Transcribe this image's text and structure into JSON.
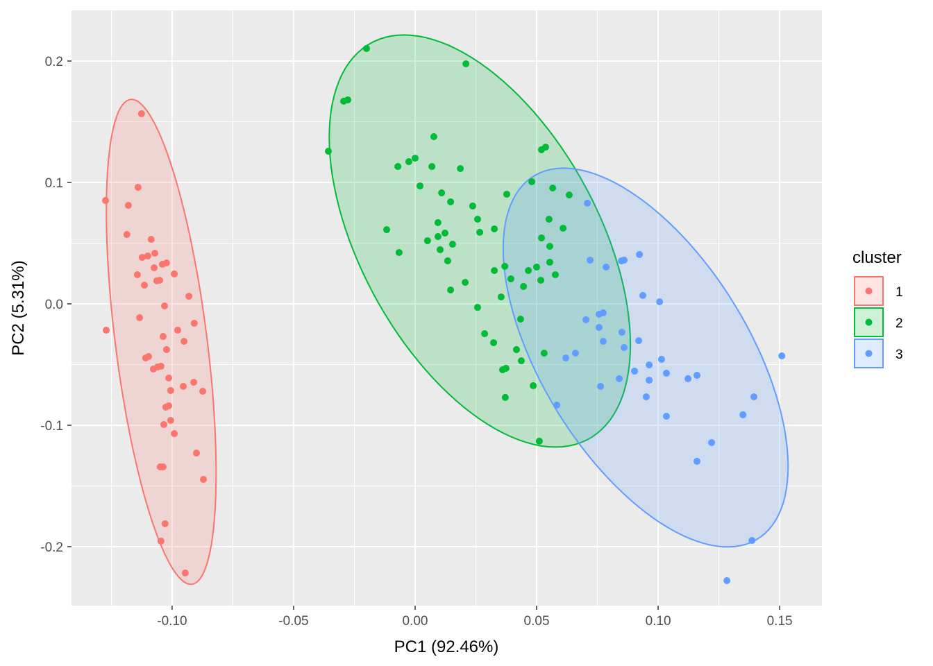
{
  "chart_data": {
    "type": "scatter",
    "xlabel": "PC1 (92.46%)",
    "ylabel": "PC2 (5.31%)",
    "xlim": [
      -0.1414,
      0.1674
    ],
    "ylim": [
      -0.2486,
      0.2417
    ],
    "xticks": [
      -0.1,
      -0.05,
      0.0,
      0.05,
      0.1,
      0.15
    ],
    "xtick_labels": [
      "-0.10",
      "-0.05",
      "0.00",
      "0.05",
      "0.10",
      "0.15"
    ],
    "yticks": [
      -0.2,
      -0.1,
      0.0,
      0.1,
      0.2
    ],
    "ytick_labels": [
      "-0.2",
      "-0.1",
      "0.0",
      "0.1",
      "0.2"
    ],
    "grid": true,
    "ellipses": "95% per cluster, filled",
    "legend": {
      "title": "cluster",
      "placement": "right"
    },
    "series": [
      {
        "name": "1",
        "color": "#F8766D",
        "points": [
          [
            -0.1126,
            0.1566
          ],
          [
            -0.1274,
            0.0851
          ],
          [
            -0.114,
            0.096
          ],
          [
            -0.118,
            0.0811
          ],
          [
            -0.1186,
            0.0571
          ],
          [
            -0.1086,
            0.0531
          ],
          [
            -0.1123,
            0.0383
          ],
          [
            -0.11,
            0.0394
          ],
          [
            -0.1071,
            0.0417
          ],
          [
            -0.1023,
            0.0337
          ],
          [
            -0.104,
            0.0326
          ],
          [
            -0.1074,
            0.0297
          ],
          [
            -0.1143,
            0.024
          ],
          [
            -0.0991,
            0.0246
          ],
          [
            -0.1051,
            0.0194
          ],
          [
            -0.1063,
            0.019
          ],
          [
            -0.1114,
            0.0154
          ],
          [
            -0.0931,
            0.0063
          ],
          [
            -0.1031,
            -0.0017
          ],
          [
            -0.1134,
            -0.0114
          ],
          [
            -0.1037,
            -0.0269
          ],
          [
            -0.0977,
            -0.0217
          ],
          [
            -0.0909,
            -0.016
          ],
          [
            -0.0951,
            -0.0309
          ],
          [
            -0.1271,
            -0.0217
          ],
          [
            -0.1023,
            -0.0377
          ],
          [
            -0.1097,
            -0.0434
          ],
          [
            -0.1109,
            -0.0446
          ],
          [
            -0.1046,
            -0.0514
          ],
          [
            -0.106,
            -0.052
          ],
          [
            -0.1077,
            -0.0537
          ],
          [
            -0.1014,
            -0.0611
          ],
          [
            -0.0954,
            -0.068
          ],
          [
            -0.0911,
            -0.0646
          ],
          [
            -0.0874,
            -0.072
          ],
          [
            -0.1006,
            -0.0714
          ],
          [
            -0.1014,
            -0.084
          ],
          [
            -0.1026,
            -0.0851
          ],
          [
            -0.1006,
            -0.096
          ],
          [
            -0.1034,
            -0.0994
          ],
          [
            -0.0991,
            -0.1069
          ],
          [
            -0.09,
            -0.1229
          ],
          [
            -0.0871,
            -0.1446
          ],
          [
            -0.1037,
            -0.1343
          ],
          [
            -0.1049,
            -0.1343
          ],
          [
            -0.1029,
            -0.1811
          ],
          [
            -0.1046,
            -0.1954
          ],
          [
            -0.0946,
            -0.2217
          ]
        ]
      },
      {
        "name": "2",
        "color": "#00BA38",
        "points": [
          [
            -0.02,
            0.2103
          ],
          [
            0.0209,
            0.1977
          ],
          [
            -0.0294,
            0.1669
          ],
          [
            -0.0277,
            0.168
          ],
          [
            -0.0357,
            0.1257
          ],
          [
            0.0077,
            0.1377
          ],
          [
            0.0,
            0.12
          ],
          [
            -0.0026,
            0.1171
          ],
          [
            -0.0071,
            0.1131
          ],
          [
            0.0069,
            0.1131
          ],
          [
            0.0186,
            0.1114
          ],
          [
            0.0537,
            0.1291
          ],
          [
            0.052,
            0.1269
          ],
          [
            0.048,
            0.1006
          ],
          [
            0.002,
            0.0971
          ],
          [
            0.0109,
            0.0914
          ],
          [
            0.0377,
            0.0903
          ],
          [
            0.0566,
            0.0954
          ],
          [
            0.0634,
            0.0897
          ],
          [
            0.0146,
            0.084
          ],
          [
            0.0237,
            0.0806
          ],
          [
            -0.0117,
            0.0611
          ],
          [
            0.0094,
            0.0669
          ],
          [
            0.0257,
            0.0697
          ],
          [
            0.0326,
            0.0617
          ],
          [
            0.0551,
            0.0697
          ],
          [
            0.0609,
            0.0623
          ],
          [
            0.0266,
            0.0589
          ],
          [
            0.0123,
            0.0583
          ],
          [
            0.0094,
            0.0554
          ],
          [
            0.0051,
            0.052
          ],
          [
            0.052,
            0.0543
          ],
          [
            0.0154,
            0.0491
          ],
          [
            0.0554,
            0.0474
          ],
          [
            -0.0066,
            0.0423
          ],
          [
            0.0103,
            0.0446
          ],
          [
            0.0134,
            0.0354
          ],
          [
            0.0554,
            0.0343
          ],
          [
            0.0369,
            0.0309
          ],
          [
            0.05,
            0.0303
          ],
          [
            0.0326,
            0.0274
          ],
          [
            0.0466,
            0.0274
          ],
          [
            0.0577,
            0.024
          ],
          [
            0.0394,
            0.0206
          ],
          [
            0.0517,
            0.0194
          ],
          [
            0.0206,
            0.0177
          ],
          [
            0.0446,
            0.0143
          ],
          [
            0.0146,
            0.0114
          ],
          [
            0.0354,
            0.0057
          ],
          [
            0.0257,
            -0.0029
          ],
          [
            0.0434,
            -0.0126
          ],
          [
            0.0286,
            -0.0246
          ],
          [
            0.0323,
            -0.032
          ],
          [
            0.0417,
            -0.0377
          ],
          [
            0.0437,
            -0.0469
          ],
          [
            0.0531,
            -0.0406
          ],
          [
            0.0374,
            -0.0531
          ],
          [
            0.036,
            -0.0543
          ],
          [
            0.0486,
            -0.0674
          ],
          [
            0.0371,
            -0.0771
          ],
          [
            0.0511,
            -0.1131
          ]
        ]
      },
      {
        "name": "3",
        "color": "#619CFF",
        "points": [
          [
            0.0709,
            0.0829
          ],
          [
            0.0923,
            0.0406
          ],
          [
            0.072,
            0.036
          ],
          [
            0.0849,
            0.0354
          ],
          [
            0.086,
            0.036
          ],
          [
            0.0786,
            0.0303
          ],
          [
            0.0937,
            0.0069
          ],
          [
            0.1006,
            0.0017
          ],
          [
            0.0774,
            -0.0074
          ],
          [
            0.0757,
            -0.0086
          ],
          [
            0.0703,
            -0.0131
          ],
          [
            0.0757,
            -0.0194
          ],
          [
            0.0851,
            -0.0234
          ],
          [
            0.0774,
            -0.0309
          ],
          [
            0.092,
            -0.0303
          ],
          [
            0.086,
            -0.036
          ],
          [
            0.066,
            -0.0406
          ],
          [
            0.062,
            -0.0446
          ],
          [
            0.1014,
            -0.0457
          ],
          [
            0.1509,
            -0.0429
          ],
          [
            0.0963,
            -0.0503
          ],
          [
            0.0903,
            -0.0554
          ],
          [
            0.1034,
            -0.0571
          ],
          [
            0.116,
            -0.0589
          ],
          [
            0.1123,
            -0.0617
          ],
          [
            0.084,
            -0.0617
          ],
          [
            0.0963,
            -0.0629
          ],
          [
            0.0763,
            -0.068
          ],
          [
            0.0951,
            -0.0766
          ],
          [
            0.1394,
            -0.0766
          ],
          [
            0.0583,
            -0.0834
          ],
          [
            0.1349,
            -0.0914
          ],
          [
            0.1034,
            -0.0926
          ],
          [
            0.122,
            -0.1143
          ],
          [
            0.116,
            -0.1297
          ],
          [
            0.1386,
            -0.1949
          ],
          [
            0.1283,
            -0.228
          ]
        ]
      }
    ]
  }
}
